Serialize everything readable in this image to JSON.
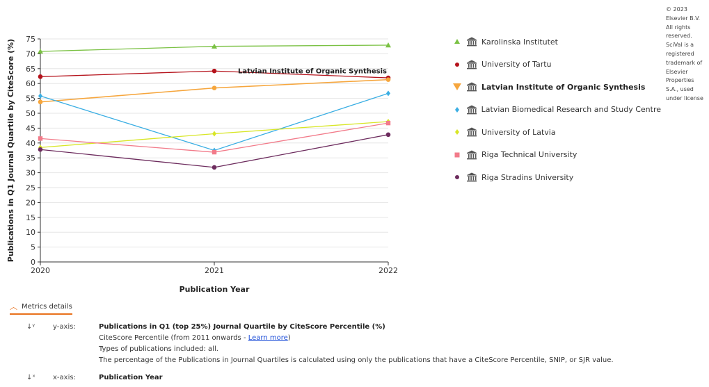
{
  "chart_data": {
    "type": "line",
    "xlabel": "Publication Year",
    "ylabel": "Publications in Q1 Journal Quartile by CiteScore (%)",
    "categories": [
      "2020",
      "2021",
      "2022"
    ],
    "ylim": [
      0,
      75
    ],
    "yticks": [
      0,
      5,
      10,
      15,
      20,
      25,
      30,
      35,
      40,
      45,
      50,
      55,
      60,
      65,
      70,
      75
    ],
    "grid": true,
    "legend_position": "right",
    "annotation": {
      "text": "Latvian Institute of Organic Synthesis",
      "series": "Latvian Institute of Organic Synthesis",
      "x": "2022"
    },
    "series": [
      {
        "name": "Karolinska Institutet",
        "values": [
          70.8,
          72.5,
          72.9
        ],
        "color": "#7ac143",
        "marker": "triangle"
      },
      {
        "name": "University of Tartu",
        "values": [
          62.3,
          64.2,
          61.9
        ],
        "color": "#b5121b",
        "marker": "circle"
      },
      {
        "name": "Latvian Institute of Organic Synthesis",
        "values": [
          53.8,
          58.5,
          61.3
        ],
        "color": "#f6a63d",
        "marker": "circle",
        "highlight": true
      },
      {
        "name": "Latvian Biomedical Research and Study Centre",
        "values": [
          55.8,
          37.5,
          56.7
        ],
        "color": "#3aaee3",
        "marker": "diamond"
      },
      {
        "name": "University of Latvia",
        "values": [
          38.5,
          43.1,
          47.2
        ],
        "color": "#d8e626",
        "marker": "diamond"
      },
      {
        "name": "Riga Technical University",
        "values": [
          41.5,
          36.9,
          46.7
        ],
        "color": "#f27b8a",
        "marker": "square"
      },
      {
        "name": "Riga Stradins University",
        "values": [
          37.8,
          31.8,
          42.8
        ],
        "color": "#6d2c5e",
        "marker": "circle"
      }
    ]
  },
  "copyright": "© 2023 Elsevier B.V. All rights reserved. SciVal is a registered trademark of Elsevier Properties S.A., used under license",
  "metrics": {
    "toggle_label": "Metrics details",
    "y": {
      "label": "y-axis:",
      "title": "Publications in Q1 (top 25%) Journal Quartile by CiteScore Percentile (%)",
      "line1_prefix": "CiteScore Percentile (from 2011 onwards - ",
      "link": "Learn more",
      "line1_suffix": ")",
      "line2": "Types of publications included: all.",
      "line3": "The percentage of the Publications in Journal Quartiles is calculated using only the publications that have a CiteScore Percentile, SNIP, or SJR value."
    },
    "x": {
      "label": "x-axis:",
      "title": "Publication Year"
    }
  }
}
